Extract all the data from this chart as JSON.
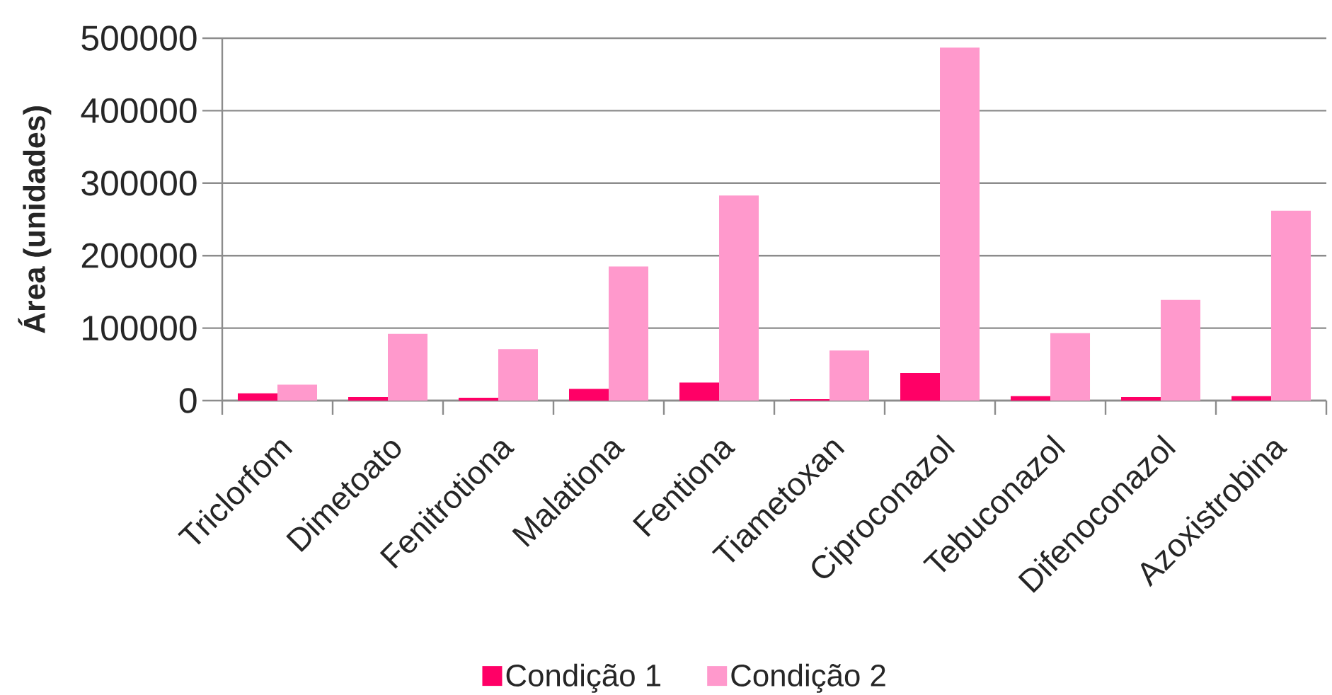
{
  "chart_data": {
    "type": "bar",
    "ylabel": "Área (unidades)",
    "categories": [
      "Triclorfom",
      "Dimetoato",
      "Fenitrotiona",
      "Malationa",
      "Fentiona",
      "Tiametoxan",
      "Ciproconazol",
      "Tebuconazol",
      "Difenoconazol",
      "Azoxistrobina"
    ],
    "series": [
      {
        "name": "Condição 1",
        "color": "#ff0066",
        "values": [
          10000,
          5000,
          4000,
          16000,
          25000,
          2000,
          38000,
          6000,
          5000,
          6000
        ]
      },
      {
        "name": "Condição 2",
        "color": "#ff99cc",
        "values": [
          22000,
          92000,
          71000,
          185000,
          283000,
          69000,
          487000,
          93000,
          139000,
          262000
        ]
      }
    ],
    "ylim": [
      0,
      500000
    ],
    "yticks": [
      0,
      100000,
      200000,
      300000,
      400000,
      500000
    ],
    "grid": "y",
    "legend": "bottom"
  }
}
